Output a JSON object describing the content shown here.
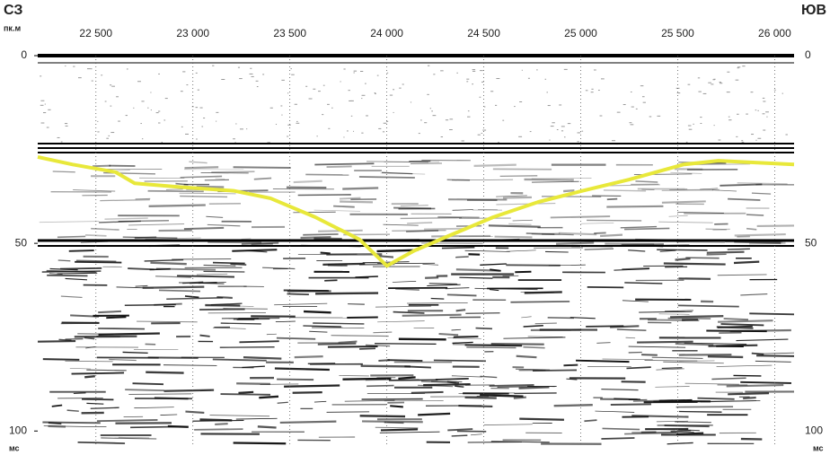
{
  "chart_data": {
    "type": "line",
    "left_direction": "СЗ",
    "right_direction": "ЮВ",
    "xlabel": "пк.м",
    "ylabel": "мс",
    "xlim": [
      22200,
      26100
    ],
    "ylim": [
      0,
      104
    ],
    "y_inverted": true,
    "xticks": [
      {
        "value": 22500,
        "label": "22 500"
      },
      {
        "value": 23000,
        "label": "23 000"
      },
      {
        "value": 23500,
        "label": "23 500"
      },
      {
        "value": 24000,
        "label": "24 000"
      },
      {
        "value": 24500,
        "label": "24 500"
      },
      {
        "value": 25000,
        "label": "25 000"
      },
      {
        "value": 25500,
        "label": "25 500"
      },
      {
        "value": 26000,
        "label": "26 000"
      }
    ],
    "yticks": [
      0,
      50,
      100
    ],
    "grid": true,
    "x": [
      22200,
      22380,
      22600,
      22700,
      22930,
      23210,
      23400,
      23630,
      23860,
      24000,
      24140,
      24320,
      24550,
      24780,
      25010,
      25250,
      25530,
      25710,
      26100
    ],
    "values": [
      27,
      29,
      31,
      34,
      35,
      36,
      38,
      43,
      49,
      56,
      52,
      48,
      43,
      39,
      36,
      33,
      29,
      28,
      29
    ],
    "color": "#e8e83a"
  }
}
